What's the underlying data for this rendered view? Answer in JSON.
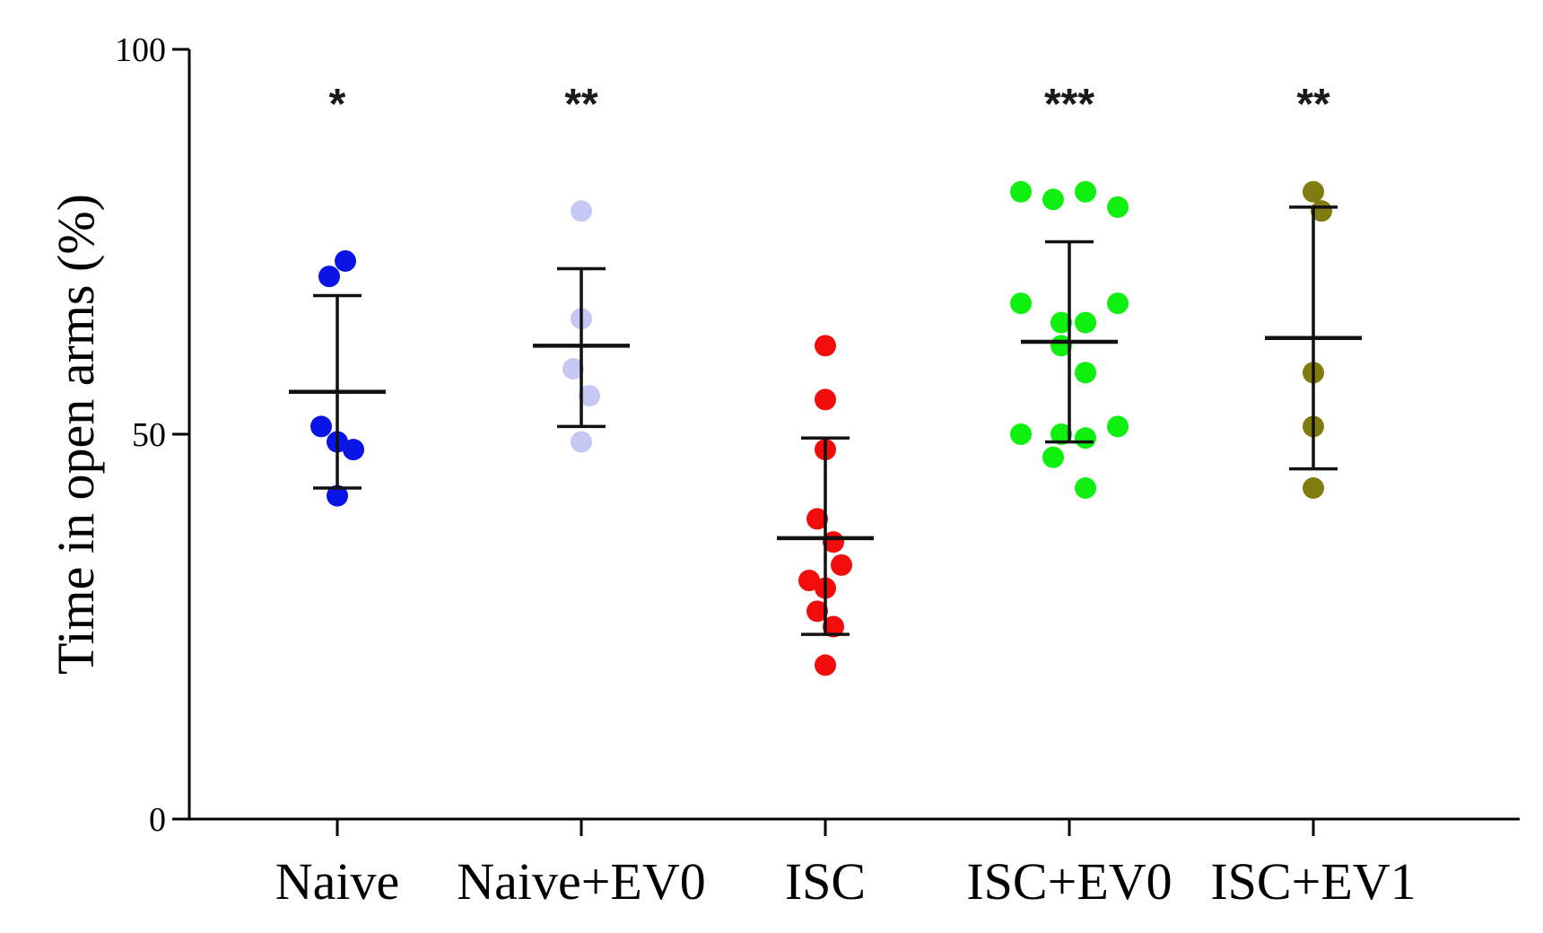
{
  "chart_data": {
    "type": "scatter",
    "title": "",
    "xlabel": "",
    "ylabel": "Time in open arms (%)",
    "ylim": [
      0,
      100
    ],
    "yticks": [
      0,
      50,
      100
    ],
    "grid": false,
    "legend": "none",
    "categories": [
      "Naive",
      "Naive+EV0",
      "ISC",
      "ISC+EV0",
      "ISC+EV1"
    ],
    "series": [
      {
        "name": "Naive",
        "color": "#0a14e6",
        "points": [
          [
            -0.05,
            70.5
          ],
          [
            0.05,
            72.5
          ],
          [
            -0.1,
            51
          ],
          [
            0.0,
            49
          ],
          [
            0.1,
            48
          ],
          [
            0.0,
            42
          ]
        ],
        "mean": 55.5,
        "error": [
          43,
          68
        ],
        "significance": "*"
      },
      {
        "name": "Naive+EV0",
        "color": "#c6c8f4",
        "points": [
          [
            0.0,
            79
          ],
          [
            0.0,
            65
          ],
          [
            -0.05,
            58.5
          ],
          [
            0.05,
            55
          ],
          [
            0.0,
            49
          ]
        ],
        "mean": 61.5,
        "error": [
          51,
          71.5
        ],
        "significance": "**"
      },
      {
        "name": "ISC",
        "color": "#f20c0c",
        "points": [
          [
            0.0,
            61.5
          ],
          [
            0.0,
            54.5
          ],
          [
            0.0,
            48
          ],
          [
            -0.05,
            39
          ],
          [
            0.05,
            36
          ],
          [
            0.1,
            33
          ],
          [
            -0.1,
            31
          ],
          [
            0.0,
            30
          ],
          [
            -0.05,
            27
          ],
          [
            0.05,
            25
          ],
          [
            0.0,
            20
          ]
        ],
        "mean": 36.5,
        "error": [
          24,
          49.5
        ],
        "significance": ""
      },
      {
        "name": "ISC+EV0",
        "color": "#10f010",
        "points": [
          [
            -0.3,
            81.5
          ],
          [
            -0.1,
            80.5
          ],
          [
            0.1,
            81.5
          ],
          [
            0.3,
            79.5
          ],
          [
            -0.3,
            67
          ],
          [
            0.3,
            67
          ],
          [
            -0.05,
            64.5
          ],
          [
            0.1,
            64.5
          ],
          [
            -0.05,
            61.5
          ],
          [
            0.1,
            58
          ],
          [
            -0.3,
            50
          ],
          [
            -0.05,
            50
          ],
          [
            0.1,
            49.5
          ],
          [
            0.3,
            51
          ],
          [
            -0.1,
            47
          ],
          [
            0.1,
            43
          ]
        ],
        "mean": 62,
        "error": [
          49,
          75
        ],
        "significance": "***"
      },
      {
        "name": "ISC+EV1",
        "color": "#807c10",
        "points": [
          [
            0.0,
            81.5
          ],
          [
            0.05,
            79
          ],
          [
            0.0,
            58
          ],
          [
            0.0,
            51
          ],
          [
            0.0,
            43
          ]
        ],
        "mean": 62.5,
        "error": [
          45.5,
          79.5
        ],
        "significance": "**"
      }
    ]
  }
}
